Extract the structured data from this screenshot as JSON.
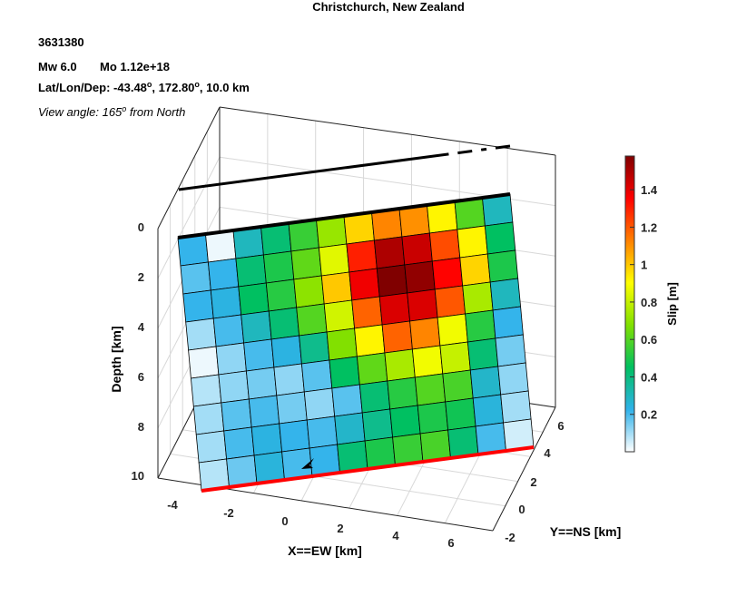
{
  "header": {
    "title": "Christchurch, New Zealand",
    "event_id": "3631380",
    "magnitude": "Mw 6.0",
    "moment": "Mo 1.12e+18",
    "location_prefix": "Lat/Lon/Dep: -43.48",
    "location_mid": ", 172.80",
    "location_suffix": ", 10.0 km",
    "degree_mark": "o",
    "view_prefix": "View angle: 165",
    "view_suffix": " from North"
  },
  "chart_data": {
    "type": "heatmap",
    "description_axes": {
      "xlabel": "X==EW [km]",
      "ylabel": "Y==NS [km]",
      "zlabel": "Depth [km]"
    },
    "x_ticks": [
      "-4",
      "-2",
      "0",
      "2",
      "4",
      "6"
    ],
    "y_ticks": [
      "-2",
      "0",
      "2",
      "4",
      "6"
    ],
    "z_ticks": [
      "0",
      "2",
      "4",
      "6",
      "8",
      "10"
    ],
    "colorbar": {
      "label": "Slip [m]",
      "ticks": [
        "0.2",
        "0.4",
        "0.6",
        "0.8",
        "1",
        "1.2",
        "1.4"
      ],
      "range": [
        0,
        1.58
      ],
      "colors": [
        "#ffffff",
        "#2fb2ea",
        "#00c060",
        "#80e000",
        "#ffff00",
        "#ff8000",
        "#ff0000",
        "#800000"
      ]
    },
    "columns": 12,
    "rows": 9,
    "slip": [
      [
        0.22,
        0.02,
        0.3,
        0.42,
        0.55,
        0.72,
        0.98,
        1.12,
        1.1,
        0.92,
        0.6,
        0.3
      ],
      [
        0.18,
        0.22,
        0.42,
        0.5,
        0.62,
        0.85,
        1.3,
        1.5,
        1.45,
        1.22,
        0.92,
        0.45
      ],
      [
        0.22,
        0.24,
        0.45,
        0.52,
        0.7,
        1.0,
        1.38,
        1.58,
        1.55,
        1.35,
        0.98,
        0.5
      ],
      [
        0.1,
        0.2,
        0.3,
        0.42,
        0.6,
        0.82,
        1.18,
        1.42,
        1.42,
        1.2,
        0.75,
        0.3
      ],
      [
        0.02,
        0.12,
        0.2,
        0.24,
        0.38,
        0.68,
        0.92,
        1.18,
        1.12,
        0.88,
        0.52,
        0.22
      ],
      [
        0.08,
        0.12,
        0.15,
        0.12,
        0.18,
        0.45,
        0.62,
        0.75,
        0.88,
        0.8,
        0.42,
        0.15
      ],
      [
        0.1,
        0.18,
        0.2,
        0.15,
        0.12,
        0.18,
        0.42,
        0.52,
        0.6,
        0.58,
        0.28,
        0.12
      ],
      [
        0.1,
        0.2,
        0.24,
        0.22,
        0.2,
        0.28,
        0.38,
        0.45,
        0.5,
        0.48,
        0.25,
        0.1
      ],
      [
        0.08,
        0.16,
        0.25,
        0.2,
        0.22,
        0.42,
        0.5,
        0.55,
        0.58,
        0.42,
        0.2,
        0.05
      ]
    ],
    "grid": true,
    "view_azimuth_deg": 165
  }
}
